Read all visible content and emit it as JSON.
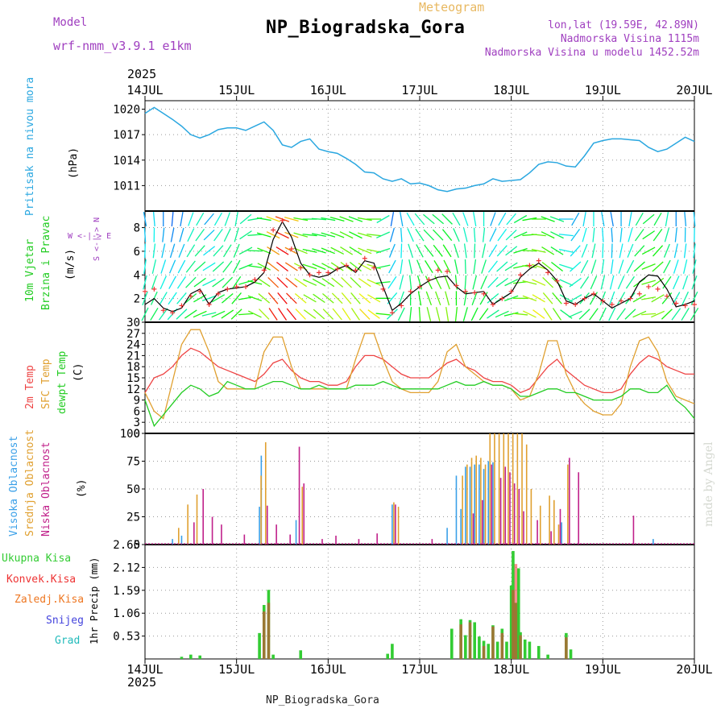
{
  "header": {
    "model_label": "Model",
    "model_name": "wrf-nmm_v3.9.1 e1km",
    "subtitle": "Meteogram",
    "title": "NP_Biogradska_Gora",
    "coords": "lon,lat (19.59E, 42.89N)",
    "elevation": "Nadmorska Visina 1115m",
    "model_elevation": "Nadmorska Visina u modelu 1452.52m"
  },
  "footer": {
    "station": "NP_Biogradska_Gora",
    "credit": "made by Angel"
  },
  "time_axis": {
    "year": "2025",
    "ticks": [
      "14JUL",
      "15JUL",
      "16JUL",
      "17JUL",
      "18JUL",
      "19JUL",
      "20JUL"
    ]
  },
  "panel_labels": {
    "pressure": {
      "name": "Pritisak na nivou mora",
      "unit": "(hPa)"
    },
    "wind": {
      "line1": "10m Vjetar",
      "line2": "Brzina i Pravac",
      "unit": "(m/s)",
      "compass": "W <-|-> E",
      "compass_ns": "S <-|-> N"
    },
    "temp": {
      "t2m": "2m Temp",
      "sfc": "SFC Temp",
      "dew": "dewpt Temp",
      "unit": "(C)"
    },
    "cloud": {
      "high": "Visoka Oblacnost",
      "mid": "Srednja Oblacnost",
      "low": "Niska Oblacnost",
      "unit": "(%)"
    },
    "precip": {
      "total": "Ukupna Kisa",
      "conv": "Konvek.Kisa",
      "frozen": "Zaledj.Kisa",
      "snow": "Snijeg",
      "hail": "Grad",
      "unit": "1hr Precip (mm)"
    }
  },
  "colors": {
    "pressure": "#2aa7e0",
    "t2m": "#ee4444",
    "sfc": "#e0a030",
    "dew": "#22cc22",
    "high": "#3aa0e8",
    "mid": "#e0a030",
    "low": "#c0208a",
    "rain": "#33cc33",
    "conv": "#ee3333",
    "frozen": "#ee7722",
    "snow": "#4444dd",
    "hail": "#22bbbb",
    "model": "#a040c0",
    "subtitle": "#e8b860"
  },
  "chart_data": [
    {
      "type": "line",
      "name": "pressure",
      "xlabel": "",
      "ylabel": "(hPa)",
      "ylim": [
        1008,
        1021
      ],
      "yticks": [
        1011,
        1014,
        1017,
        1020
      ],
      "xlim_days": [
        14,
        20
      ],
      "x": [
        14.0,
        14.1,
        14.2,
        14.3,
        14.4,
        14.5,
        14.6,
        14.7,
        14.8,
        14.9,
        15.0,
        15.1,
        15.2,
        15.3,
        15.4,
        15.5,
        15.6,
        15.7,
        15.8,
        15.9,
        16.0,
        16.1,
        16.2,
        16.3,
        16.4,
        16.5,
        16.6,
        16.7,
        16.8,
        16.9,
        17.0,
        17.1,
        17.2,
        17.3,
        17.4,
        17.5,
        17.6,
        17.7,
        17.8,
        17.9,
        18.0,
        18.1,
        18.2,
        18.3,
        18.4,
        18.5,
        18.6,
        18.7,
        18.8,
        18.9,
        19.0,
        19.1,
        19.2,
        19.3,
        19.4,
        19.5,
        19.6,
        19.7,
        19.8,
        19.9,
        20.0
      ],
      "values": [
        1019.5,
        1020.2,
        1019.5,
        1018.8,
        1018.0,
        1017.0,
        1016.6,
        1017.0,
        1017.6,
        1017.8,
        1017.8,
        1017.5,
        1018.0,
        1018.5,
        1017.5,
        1015.8,
        1015.5,
        1016.2,
        1016.5,
        1015.3,
        1015.0,
        1014.8,
        1014.2,
        1013.5,
        1012.6,
        1012.5,
        1011.8,
        1011.5,
        1011.8,
        1011.2,
        1011.3,
        1011.0,
        1010.5,
        1010.3,
        1010.6,
        1010.7,
        1011.0,
        1011.2,
        1011.8,
        1011.5,
        1011.6,
        1011.7,
        1012.5,
        1013.5,
        1013.8,
        1013.7,
        1013.3,
        1013.2,
        1014.5,
        1016.0,
        1016.3,
        1016.5,
        1016.5,
        1016.4,
        1016.3,
        1015.5,
        1015.0,
        1015.3,
        1016.0,
        1016.7,
        1016.2
      ]
    },
    {
      "type": "line",
      "name": "wind",
      "ylabel": "(m/s)",
      "ylim": [
        0,
        9.4
      ],
      "yticks": [
        2,
        4,
        6,
        8
      ],
      "x": [
        14.0,
        14.1,
        14.2,
        14.3,
        14.4,
        14.5,
        14.6,
        14.7,
        14.8,
        14.9,
        15.0,
        15.1,
        15.2,
        15.3,
        15.4,
        15.5,
        15.6,
        15.7,
        15.8,
        15.9,
        16.0,
        16.1,
        16.2,
        16.3,
        16.4,
        16.5,
        16.6,
        16.7,
        16.8,
        16.9,
        17.0,
        17.1,
        17.2,
        17.3,
        17.4,
        17.5,
        17.6,
        17.7,
        17.8,
        17.9,
        18.0,
        18.1,
        18.2,
        18.3,
        18.4,
        18.5,
        18.6,
        18.7,
        18.8,
        18.9,
        19.0,
        19.1,
        19.2,
        19.3,
        19.4,
        19.5,
        19.6,
        19.7,
        19.8,
        19.9,
        20.0
      ],
      "values": [
        1.5,
        2.0,
        1.2,
        0.9,
        1.2,
        2.4,
        2.8,
        1.5,
        2.5,
        2.8,
        2.9,
        3.0,
        3.4,
        4.2,
        7.0,
        8.5,
        7.2,
        5.0,
        4.0,
        3.8,
        4.0,
        4.5,
        4.8,
        4.2,
        5.2,
        5.0,
        3.0,
        1.0,
        1.6,
        2.4,
        3.0,
        3.5,
        3.8,
        3.9,
        3.0,
        2.4,
        2.5,
        2.6,
        1.5,
        2.0,
        2.5,
        3.8,
        4.5,
        5.0,
        4.4,
        3.5,
        1.8,
        1.5,
        2.0,
        2.4,
        1.8,
        1.2,
        1.6,
        2.0,
        3.4,
        4.0,
        3.9,
        2.8,
        1.3,
        1.5,
        1.8
      ],
      "gust_marks": [
        2.6,
        2.8,
        1.0,
        0.8,
        1.4,
        2.2,
        2.6,
        1.5,
        2.4,
        2.8,
        3.0,
        3.0,
        3.6,
        4.4,
        7.8,
        8.6,
        6.2,
        4.6,
        4.0,
        4.2,
        4.2,
        4.5,
        4.8,
        4.4,
        5.4,
        4.6,
        2.8,
        0.8,
        1.4,
        2.6,
        3.0,
        3.6,
        4.4,
        4.3,
        3.1,
        2.6,
        2.5,
        2.4,
        1.5,
        2.0,
        2.6,
        4.0,
        4.8,
        5.2,
        4.2,
        3.5,
        1.6,
        1.5,
        2.0,
        2.4,
        1.8,
        1.5,
        1.8,
        2.0,
        2.4,
        3.0,
        2.8,
        2.2,
        1.6,
        1.4,
        1.5
      ],
      "wind_dir_deg": [
        80,
        85,
        90,
        95,
        100,
        110,
        120,
        130,
        120,
        110,
        100,
        140,
        170,
        190,
        200,
        200,
        195,
        190,
        180,
        185,
        190,
        195,
        200,
        200,
        190,
        180,
        150,
        100,
        80,
        60,
        50,
        40,
        40,
        45,
        60,
        70,
        80,
        90,
        110,
        120,
        130,
        150,
        170,
        180,
        200,
        200,
        180,
        120,
        100,
        90,
        80,
        80,
        90,
        100,
        120,
        140,
        120,
        100,
        90,
        85,
        85
      ]
    },
    {
      "type": "line",
      "name": "temperature",
      "ylabel": "(C)",
      "ylim": [
        0,
        30
      ],
      "yticks": [
        0,
        3,
        6,
        9,
        12,
        15,
        18,
        21,
        24,
        27,
        30
      ],
      "x": [
        14.0,
        14.1,
        14.2,
        14.3,
        14.4,
        14.5,
        14.6,
        14.7,
        14.8,
        14.9,
        15.0,
        15.1,
        15.2,
        15.3,
        15.4,
        15.5,
        15.6,
        15.7,
        15.8,
        15.9,
        16.0,
        16.1,
        16.2,
        16.3,
        16.4,
        16.5,
        16.6,
        16.7,
        16.8,
        16.9,
        17.0,
        17.1,
        17.2,
        17.3,
        17.4,
        17.5,
        17.6,
        17.7,
        17.8,
        17.9,
        18.0,
        18.1,
        18.2,
        18.3,
        18.4,
        18.5,
        18.6,
        18.7,
        18.8,
        18.9,
        19.0,
        19.1,
        19.2,
        19.3,
        19.4,
        19.5,
        19.6,
        19.7,
        19.8,
        19.9,
        20.0
      ],
      "series": [
        {
          "name": "2m Temp",
          "values": [
            11,
            15,
            16,
            18,
            21,
            23,
            22,
            20,
            18,
            17,
            16,
            15,
            14,
            16,
            19,
            20,
            17,
            15,
            14,
            14,
            13,
            13,
            14,
            18,
            21,
            21,
            20,
            18,
            16,
            15,
            15,
            15,
            17,
            19,
            20,
            18,
            17,
            15,
            14,
            14,
            13,
            11,
            12,
            15,
            18,
            20,
            17,
            15,
            13,
            12,
            11,
            11,
            12,
            16,
            19,
            21,
            20,
            18,
            17,
            16,
            16
          ]
        },
        {
          "name": "SFC Temp",
          "values": [
            11,
            6,
            4,
            14,
            24,
            28,
            28,
            22,
            14,
            12,
            12,
            12,
            12,
            22,
            26,
            26,
            18,
            12,
            12,
            12,
            12,
            12,
            12,
            20,
            27,
            27,
            20,
            14,
            12,
            11,
            11,
            11,
            14,
            22,
            24,
            18,
            16,
            14,
            13,
            13,
            12,
            9,
            10,
            16,
            25,
            25,
            16,
            11,
            8,
            6,
            5,
            5,
            8,
            18,
            25,
            26,
            22,
            14,
            10,
            9,
            8
          ]
        },
        {
          "name": "dewpt Temp",
          "values": [
            9,
            2,
            5,
            8,
            11,
            13,
            12,
            10,
            11,
            14,
            13,
            12,
            12,
            13,
            14,
            14,
            13,
            12,
            12,
            13,
            12,
            12,
            12,
            13,
            13,
            13,
            14,
            13,
            12,
            12,
            12,
            12,
            12,
            13,
            14,
            13,
            13,
            14,
            13,
            13,
            12,
            10,
            10,
            11,
            12,
            12,
            11,
            11,
            10,
            9,
            9,
            9,
            10,
            12,
            12,
            11,
            11,
            13,
            9,
            7,
            4
          ]
        }
      ]
    },
    {
      "type": "bar",
      "name": "cloud",
      "ylabel": "(%)",
      "ylim": [
        0,
        100
      ],
      "yticks": [
        0,
        25,
        50,
        75,
        100
      ],
      "series": [
        {
          "name": "Visoka Oblacnost",
          "x": [
            14.3,
            14.4,
            15.25,
            15.27,
            15.65,
            16.7,
            17.3,
            17.4,
            17.45,
            17.5,
            17.55,
            17.6,
            17.65,
            17.7,
            17.75,
            17.8,
            18.55,
            19.55
          ],
          "values": [
            5,
            8,
            34,
            80,
            22,
            36,
            15,
            62,
            32,
            70,
            70,
            72,
            72,
            68,
            75,
            74,
            20,
            5
          ]
        },
        {
          "name": "Srednja Oblacnost",
          "x": [
            14.35,
            14.45,
            14.55,
            15.25,
            15.3,
            15.7,
            16.7,
            16.75,
            17.45,
            17.5,
            17.55,
            17.6,
            17.65,
            17.7,
            17.75,
            17.8,
            17.85,
            17.9,
            17.95,
            18.0,
            18.05,
            18.1,
            18.15,
            18.2,
            18.3,
            18.4,
            18.45,
            18.5,
            18.6
          ],
          "values": [
            15,
            36,
            45,
            62,
            92,
            52,
            38,
            34,
            62,
            72,
            78,
            80,
            78,
            72,
            100,
            100,
            100,
            100,
            100,
            100,
            100,
            100,
            90,
            50,
            35,
            44,
            40,
            18,
            72
          ]
        },
        {
          "name": "Niska Oblacnost",
          "x": [
            14.5,
            14.6,
            14.7,
            14.8,
            15.05,
            15.3,
            15.4,
            15.55,
            15.65,
            15.7,
            15.9,
            16.05,
            16.3,
            16.5,
            16.7,
            17.1,
            17.55,
            17.65,
            17.75,
            17.85,
            17.9,
            17.95,
            18.0,
            18.05,
            18.1,
            18.25,
            18.4,
            18.5,
            18.6,
            18.7,
            19.3
          ],
          "values": [
            20,
            50,
            25,
            18,
            9,
            35,
            18,
            9,
            88,
            55,
            5,
            8,
            5,
            10,
            36,
            5,
            28,
            40,
            72,
            60,
            70,
            65,
            55,
            50,
            30,
            22,
            12,
            32,
            78,
            65,
            26
          ]
        }
      ]
    },
    {
      "type": "bar",
      "name": "precip",
      "ylabel": "1hr Precip (mm)",
      "ylim": [
        0,
        2.65
      ],
      "yticks": [
        0.53,
        1.06,
        1.59,
        2.12,
        2.65
      ],
      "series": [
        {
          "name": "Ukupna Kisa",
          "x": [
            14.4,
            14.5,
            14.6,
            15.25,
            15.3,
            15.35,
            15.4,
            15.7,
            16.65,
            16.7,
            17.35,
            17.45,
            17.5,
            17.55,
            17.6,
            17.65,
            17.7,
            17.75,
            17.8,
            17.85,
            17.9,
            17.95,
            18.0,
            18.02,
            18.05,
            18.08,
            18.1,
            18.15,
            18.2,
            18.3,
            18.4,
            18.6,
            18.65
          ],
          "values": [
            0.05,
            0.1,
            0.08,
            0.6,
            1.25,
            1.6,
            0.1,
            0.2,
            0.12,
            0.35,
            0.7,
            0.92,
            0.55,
            0.9,
            0.85,
            0.52,
            0.42,
            0.35,
            0.78,
            0.4,
            0.7,
            0.4,
            1.7,
            2.5,
            1.3,
            2.1,
            0.62,
            0.45,
            0.4,
            0.3,
            0.1,
            0.6,
            0.22
          ]
        },
        {
          "name": "Konvek.Kisa",
          "x": [
            15.3,
            15.35,
            17.45,
            17.55,
            17.7,
            17.8,
            17.9,
            18.02,
            18.05,
            18.1,
            18.6
          ],
          "values": [
            1.1,
            1.3,
            0.8,
            0.85,
            0.3,
            0.75,
            0.6,
            1.6,
            2.2,
            0.55,
            0.5
          ]
        }
      ]
    }
  ]
}
